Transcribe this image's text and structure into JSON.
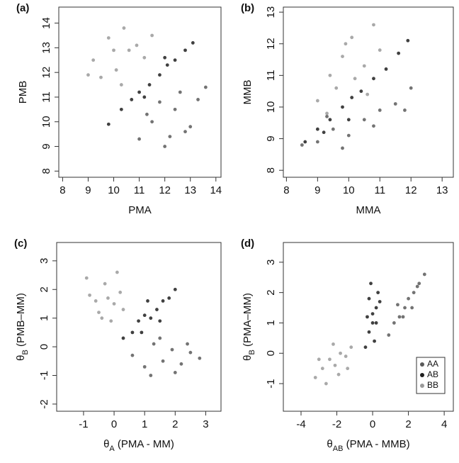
{
  "chart_data": [
    {
      "type": "scatter",
      "panel": "(a)",
      "xlabel": "PMA",
      "ylabel": "PMB",
      "xlim": [
        7.85,
        14.2
      ],
      "ylim": [
        7.75,
        14.65
      ],
      "xticks": [
        8,
        9,
        10,
        11,
        12,
        13,
        14
      ],
      "yticks": [
        8,
        9,
        10,
        11,
        12,
        13,
        14
      ],
      "series": [
        {
          "color": "#9a9a9a",
          "x": [
            9.2,
            9.8,
            10.1,
            10.4,
            10.6,
            10.9,
            11.2,
            9.5,
            10.0,
            11.5,
            10.3,
            9.0
          ],
          "values": [
            12.5,
            13.4,
            12.1,
            13.8,
            12.9,
            13.1,
            12.6,
            11.8,
            12.9,
            13.5,
            11.5,
            11.9
          ]
        },
        {
          "color": "#1e1e1e",
          "x": [
            9.8,
            10.3,
            10.7,
            11.0,
            11.4,
            11.8,
            12.1,
            12.4,
            12.8,
            13.1,
            11.2,
            12.0
          ],
          "values": [
            9.9,
            10.5,
            10.9,
            11.2,
            11.5,
            11.9,
            12.3,
            12.5,
            12.9,
            13.2,
            11.0,
            12.6
          ]
        },
        {
          "color": "#5a5a5a",
          "x": [
            11.0,
            11.5,
            12.0,
            12.4,
            12.8,
            13.3,
            13.6,
            11.8,
            12.6,
            13.0,
            12.2,
            11.3
          ],
          "values": [
            9.3,
            10.0,
            9.0,
            10.5,
            9.6,
            10.9,
            11.4,
            10.8,
            11.2,
            9.8,
            9.4,
            10.3
          ]
        }
      ]
    },
    {
      "type": "scatter",
      "panel": "(b)",
      "xlabel": "MMA",
      "ylabel": "MMB",
      "xlim": [
        7.9,
        13.36
      ],
      "ylim": [
        7.78,
        13.16
      ],
      "xticks": [
        8,
        9,
        10,
        11,
        12,
        13
      ],
      "yticks": [
        8,
        9,
        10,
        11,
        12,
        13
      ],
      "series": [
        {
          "color": "#9a9a9a",
          "x": [
            9.0,
            9.4,
            9.8,
            10.1,
            10.5,
            10.8,
            9.6,
            10.2,
            11.0,
            9.3,
            10.6,
            9.9
          ],
          "values": [
            10.2,
            11.0,
            11.6,
            12.2,
            11.3,
            12.6,
            10.6,
            10.9,
            11.8,
            9.8,
            10.4,
            12.0
          ]
        },
        {
          "color": "#1e1e1e",
          "x": [
            8.6,
            9.0,
            9.4,
            9.8,
            10.1,
            10.4,
            10.8,
            11.2,
            11.6,
            10.0,
            9.2,
            11.9
          ],
          "values": [
            8.9,
            9.3,
            9.6,
            10.0,
            10.3,
            10.5,
            10.9,
            11.2,
            11.7,
            9.6,
            9.2,
            12.1
          ]
        },
        {
          "color": "#5a5a5a",
          "x": [
            8.5,
            9.0,
            9.5,
            10.0,
            10.5,
            11.0,
            11.5,
            12.0,
            9.8,
            10.8,
            11.8,
            9.3
          ],
          "values": [
            8.8,
            8.9,
            9.3,
            9.1,
            9.6,
            9.9,
            10.1,
            10.6,
            8.7,
            9.4,
            9.9,
            9.7
          ]
        }
      ]
    },
    {
      "type": "scatter",
      "panel": "(c)",
      "xlabel": [
        "θ",
        "A",
        " (PMA - MM)"
      ],
      "ylabel": [
        "θ",
        "B",
        " (PMB–MM)"
      ],
      "xlim": [
        -1.88,
        3.5
      ],
      "ylim": [
        -2.25,
        3.64
      ],
      "xticks": [
        -1,
        0,
        1,
        2,
        3
      ],
      "yticks": [
        -2,
        -1,
        0,
        1,
        2,
        3
      ],
      "series": [
        {
          "color": "#9a9a9a",
          "x": [
            -0.8,
            -0.5,
            -0.3,
            0.0,
            0.2,
            -0.6,
            -0.1,
            0.3,
            -0.9,
            0.1,
            -0.4,
            -0.2
          ],
          "values": [
            1.8,
            1.2,
            2.2,
            1.5,
            1.9,
            1.6,
            0.9,
            1.3,
            2.4,
            2.6,
            1.0,
            1.7
          ]
        },
        {
          "color": "#1e1e1e",
          "x": [
            0.3,
            0.6,
            0.8,
            1.0,
            1.2,
            1.4,
            1.6,
            1.8,
            2.0,
            1.1,
            0.9,
            1.5
          ],
          "values": [
            0.3,
            0.5,
            0.9,
            1.1,
            1.0,
            1.3,
            1.6,
            1.7,
            2.0,
            1.6,
            0.5,
            0.9
          ]
        },
        {
          "color": "#5a5a5a",
          "x": [
            0.6,
            1.0,
            1.3,
            1.6,
            1.9,
            2.2,
            2.5,
            2.8,
            1.5,
            2.0,
            1.2,
            2.4
          ],
          "values": [
            -0.3,
            -0.7,
            0.1,
            -0.5,
            -0.1,
            -0.6,
            -0.2,
            -0.4,
            0.3,
            -0.9,
            -1.0,
            0.1
          ]
        }
      ]
    },
    {
      "type": "scatter",
      "panel": "(d)",
      "xlabel": [
        "θ",
        "AB",
        " (PMA - MMB)"
      ],
      "ylabel": [
        "θ",
        "B",
        " (PMA–MM)"
      ],
      "xlim": [
        -4.99,
        4.51
      ],
      "ylim": [
        -1.91,
        3.65
      ],
      "xticks": [
        -4,
        -2,
        0,
        2,
        4
      ],
      "yticks": [
        -1,
        0,
        1,
        2,
        3
      ],
      "legend": "bottom-right",
      "series": [
        {
          "name": "AA",
          "color": "#5a5a5a",
          "x": [
            0.9,
            1.2,
            1.5,
            1.8,
            2.0,
            2.3,
            2.6,
            2.9,
            1.4,
            2.2,
            1.7,
            2.5
          ],
          "values": [
            0.6,
            1.0,
            1.2,
            1.5,
            1.8,
            2.0,
            2.3,
            2.6,
            1.6,
            1.5,
            1.2,
            2.2
          ]
        },
        {
          "name": "AB",
          "color": "#1e1e1e",
          "x": [
            -0.4,
            -0.2,
            0.0,
            0.2,
            0.3,
            -0.3,
            0.1,
            -0.1,
            0.2,
            -0.2,
            0.0,
            0.4
          ],
          "values": [
            0.2,
            0.7,
            1.0,
            1.5,
            2.0,
            1.2,
            0.4,
            2.3,
            1.0,
            1.8,
            1.3,
            1.7
          ]
        },
        {
          "name": "BB",
          "color": "#9a9a9a",
          "x": [
            -3.2,
            -2.8,
            -2.4,
            -2.1,
            -1.8,
            -1.5,
            -1.2,
            -2.6,
            -1.9,
            -2.2,
            -1.4,
            -3.0
          ],
          "values": [
            -0.8,
            -0.5,
            -0.2,
            -0.4,
            0.0,
            -0.1,
            0.2,
            -1.0,
            -0.7,
            0.3,
            -0.5,
            -0.2
          ]
        }
      ]
    }
  ]
}
